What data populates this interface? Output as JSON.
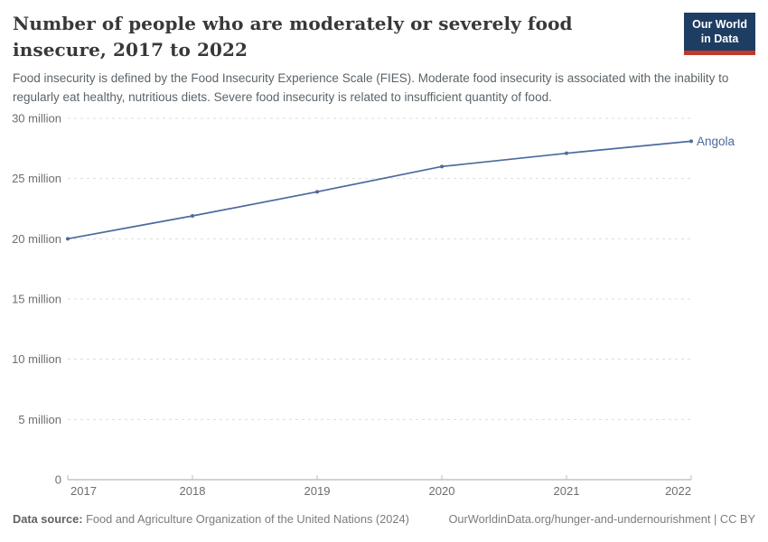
{
  "header": {
    "title": "Number of people who are moderately or severely food insecure, 2017 to 2022",
    "subtitle": "Food insecurity is defined by the Food Insecurity Experience Scale (FIES). Moderate food insecurity is associated with the inability to regularly eat healthy, nutritious diets. Severe food insecurity is related to insufficient quantity of food.",
    "logo": {
      "line1": "Our World",
      "line2": "in Data",
      "bg_color": "#1d3d63",
      "accent_color": "#c0392b"
    }
  },
  "chart_data": {
    "type": "line",
    "title": "Number of people who are moderately or severely food insecure, 2017 to 2022",
    "x": [
      2017,
      2018,
      2019,
      2020,
      2021,
      2022
    ],
    "series": [
      {
        "name": "Angola",
        "values": [
          20.0,
          21.9,
          23.9,
          26.0,
          27.1,
          28.1
        ],
        "color": "#4c6a9c",
        "unit": "million"
      }
    ],
    "ylim": [
      0,
      30
    ],
    "y_ticks": [
      {
        "value": 0,
        "label": "0"
      },
      {
        "value": 5,
        "label": "5 million"
      },
      {
        "value": 10,
        "label": "10 million"
      },
      {
        "value": 15,
        "label": "15 million"
      },
      {
        "value": 20,
        "label": "20 million"
      },
      {
        "value": 25,
        "label": "25 million"
      },
      {
        "value": 30,
        "label": "30 million"
      }
    ],
    "grid": "dashed horizontal gridlines",
    "legend": "line-end label"
  },
  "footer": {
    "datasource_label": "Data source:",
    "datasource_value": "Food and Agriculture Organization of the United Nations (2024)",
    "link": "OurWorldinData.org/hunger-and-undernourishment | CC BY"
  }
}
